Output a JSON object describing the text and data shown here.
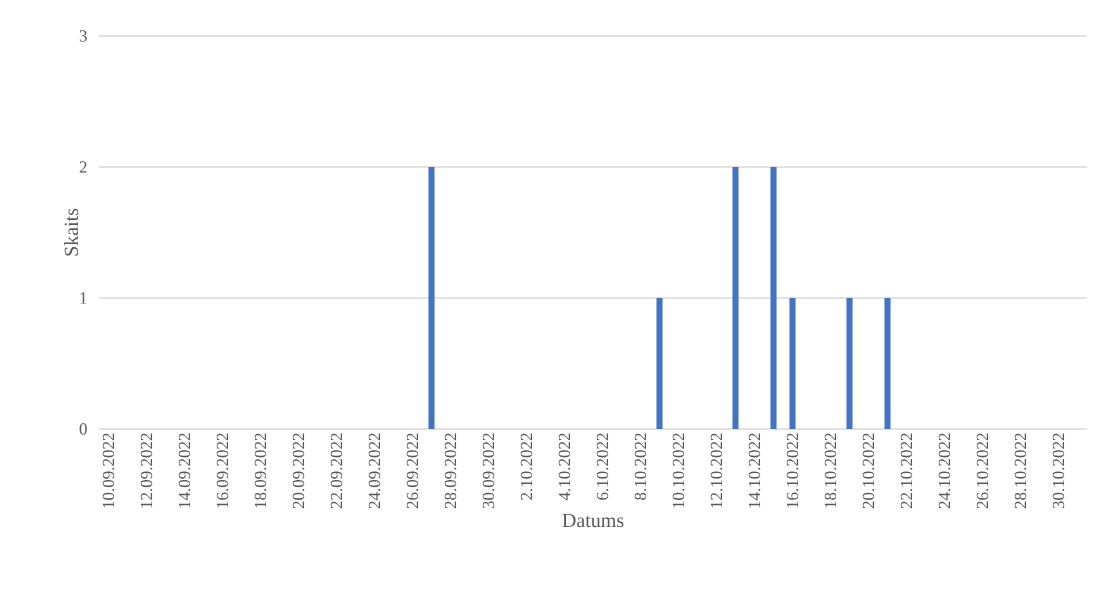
{
  "chart_data": {
    "type": "bar",
    "xlabel": "Datums",
    "ylabel": "Skaits",
    "x": [
      "2022-09-27",
      "2022-10-09",
      "2022-10-13",
      "2022-10-15",
      "2022-10-16",
      "2022-10-19",
      "2022-10-21"
    ],
    "values": [
      2,
      1,
      2,
      2,
      1,
      1,
      1
    ],
    "color": "#4472c4",
    "xlim": [
      "2022-09-09T12:00",
      "2022-10-31T12:00"
    ],
    "xticks": [
      {
        "value": "2022-09-10",
        "label": "10.09.2022"
      },
      {
        "value": "2022-09-12",
        "label": "12.09.2022"
      },
      {
        "value": "2022-09-14",
        "label": "14.09.2022"
      },
      {
        "value": "2022-09-16",
        "label": "16.09.2022"
      },
      {
        "value": "2022-09-18",
        "label": "18.09.2022"
      },
      {
        "value": "2022-09-20",
        "label": "20.09.2022"
      },
      {
        "value": "2022-09-22",
        "label": "22.09.2022"
      },
      {
        "value": "2022-09-24",
        "label": "24.09.2022"
      },
      {
        "value": "2022-09-26",
        "label": "26.09.2022"
      },
      {
        "value": "2022-09-28",
        "label": "28.09.2022"
      },
      {
        "value": "2022-09-30",
        "label": "30.09.2022"
      },
      {
        "value": "2022-10-02",
        "label": "2.10.2022"
      },
      {
        "value": "2022-10-04",
        "label": "4.10.2022"
      },
      {
        "value": "2022-10-06",
        "label": "6.10.2022"
      },
      {
        "value": "2022-10-08",
        "label": "8.10.2022"
      },
      {
        "value": "2022-10-10",
        "label": "10.10.2022"
      },
      {
        "value": "2022-10-12",
        "label": "12.10.2022"
      },
      {
        "value": "2022-10-14",
        "label": "14.10.2022"
      },
      {
        "value": "2022-10-16",
        "label": "16.10.2022"
      },
      {
        "value": "2022-10-18",
        "label": "18.10.2022"
      },
      {
        "value": "2022-10-20",
        "label": "20.10.2022"
      },
      {
        "value": "2022-10-22",
        "label": "22.10.2022"
      },
      {
        "value": "2022-10-24",
        "label": "24.10.2022"
      },
      {
        "value": "2022-10-26",
        "label": "26.10.2022"
      },
      {
        "value": "2022-10-28",
        "label": "28.10.2022"
      },
      {
        "value": "2022-10-30",
        "label": "30.10.2022"
      }
    ],
    "ylim": [
      0,
      3
    ],
    "yticks": [
      0,
      1,
      2,
      3
    ],
    "grid": "y"
  }
}
